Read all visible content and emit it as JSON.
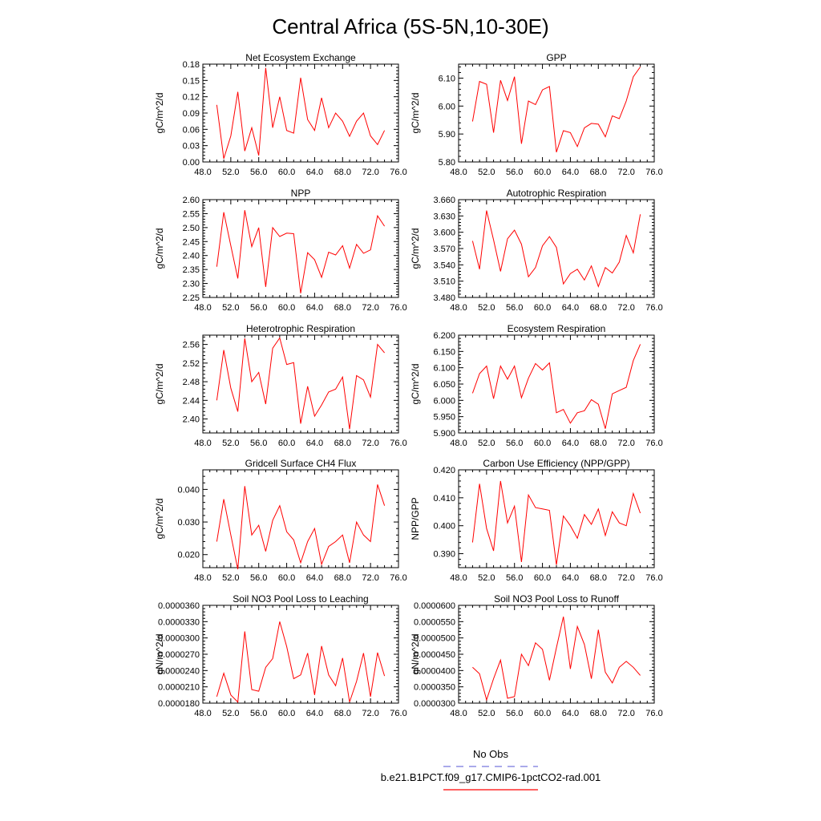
{
  "title": "Central Africa (5S-5N,10-30E)",
  "xaxis": {
    "ticks": [
      "48.0",
      "52.0",
      "56.0",
      "60.0",
      "64.0",
      "68.0",
      "72.0",
      "76.0"
    ],
    "range": [
      48,
      76
    ]
  },
  "legend": {
    "obs_label": "No Obs",
    "obs_color": "#7777dd",
    "model_label": "b.e21.B1PCT.f09_g17.CMIP6-1pctCO2-rad.001",
    "model_color": "#ff0000"
  },
  "chart_data": [
    {
      "type": "line",
      "title": "Net Ecosystem Exchange",
      "ylabel": "gC/m^2/d",
      "ylim": [
        0.0,
        0.18
      ],
      "yticks": [
        "0.00",
        "0.03",
        "0.06",
        "0.09",
        "0.12",
        "0.15",
        "0.18"
      ],
      "x": [
        50,
        51,
        52,
        53,
        54,
        55,
        56,
        57,
        58,
        59,
        60,
        61,
        62,
        63,
        64,
        65,
        66,
        67,
        68,
        69,
        70,
        71,
        72,
        73,
        74
      ],
      "values": [
        0.105,
        0.006,
        0.048,
        0.129,
        0.02,
        0.063,
        0.012,
        0.173,
        0.063,
        0.12,
        0.058,
        0.053,
        0.155,
        0.078,
        0.058,
        0.118,
        0.063,
        0.09,
        0.075,
        0.047,
        0.075,
        0.09,
        0.048,
        0.032,
        0.058
      ]
    },
    {
      "type": "line",
      "title": "GPP",
      "ylabel": "gC/m^2/d",
      "ylim": [
        5.8,
        6.15
      ],
      "yticks": [
        "5.80",
        "5.90",
        "6.00",
        "6.10"
      ],
      "x": [
        50,
        51,
        52,
        53,
        54,
        55,
        56,
        57,
        58,
        59,
        60,
        61,
        62,
        63,
        64,
        65,
        66,
        67,
        68,
        69,
        70,
        71,
        72,
        73,
        74
      ],
      "values": [
        5.945,
        6.088,
        6.078,
        5.905,
        6.092,
        6.02,
        6.105,
        5.865,
        6.018,
        6.005,
        6.058,
        6.07,
        5.835,
        5.912,
        5.905,
        5.855,
        5.922,
        5.938,
        5.935,
        5.89,
        5.965,
        5.955,
        6.018,
        6.105,
        6.14
      ]
    },
    {
      "type": "line",
      "title": "NPP",
      "ylabel": "gC/m^2/d",
      "ylim": [
        2.25,
        2.6
      ],
      "yticks": [
        "2.25",
        "2.30",
        "2.35",
        "2.40",
        "2.45",
        "2.50",
        "2.55",
        "2.60"
      ],
      "x": [
        50,
        51,
        52,
        53,
        54,
        55,
        56,
        57,
        58,
        59,
        60,
        61,
        62,
        63,
        64,
        65,
        66,
        67,
        68,
        69,
        70,
        71,
        72,
        73,
        74
      ],
      "values": [
        2.36,
        2.555,
        2.435,
        2.318,
        2.562,
        2.432,
        2.5,
        2.288,
        2.5,
        2.468,
        2.48,
        2.478,
        2.265,
        2.41,
        2.385,
        2.322,
        2.412,
        2.402,
        2.435,
        2.355,
        2.44,
        2.408,
        2.42,
        2.542,
        2.505
      ]
    },
    {
      "type": "line",
      "title": "Autotrophic Respiration",
      "ylabel": "gC/m^2/d",
      "ylim": [
        3.48,
        3.66
      ],
      "yticks": [
        "3.480",
        "3.510",
        "3.540",
        "3.570",
        "3.600",
        "3.630",
        "3.660"
      ],
      "x": [
        50,
        51,
        52,
        53,
        54,
        55,
        56,
        57,
        58,
        59,
        60,
        61,
        62,
        63,
        64,
        65,
        66,
        67,
        68,
        69,
        70,
        71,
        72,
        73,
        74
      ],
      "values": [
        3.584,
        3.532,
        3.64,
        3.586,
        3.528,
        3.588,
        3.604,
        3.578,
        3.518,
        3.535,
        3.575,
        3.592,
        3.572,
        3.505,
        3.524,
        3.532,
        3.512,
        3.538,
        3.5,
        3.535,
        3.525,
        3.545,
        3.594,
        3.562,
        3.633
      ]
    },
    {
      "type": "line",
      "title": "Heterotrophic Respiration",
      "ylabel": "gC/m^2/d",
      "ylim": [
        2.37,
        2.58
      ],
      "yticks": [
        "2.40",
        "2.44",
        "2.48",
        "2.52",
        "2.56"
      ],
      "x": [
        50,
        51,
        52,
        53,
        54,
        55,
        56,
        57,
        58,
        59,
        60,
        61,
        62,
        63,
        64,
        65,
        66,
        67,
        68,
        69,
        70,
        71,
        72,
        73,
        74
      ],
      "values": [
        2.44,
        2.548,
        2.466,
        2.416,
        2.573,
        2.48,
        2.5,
        2.432,
        2.552,
        2.574,
        2.517,
        2.521,
        2.39,
        2.47,
        2.406,
        2.43,
        2.458,
        2.464,
        2.49,
        2.378,
        2.493,
        2.484,
        2.447,
        2.56,
        2.542
      ]
    },
    {
      "type": "line",
      "title": "Ecosystem Respiration",
      "ylabel": "gC/m^2/d",
      "ylim": [
        5.9,
        6.2
      ],
      "yticks": [
        "5.900",
        "5.950",
        "6.000",
        "6.050",
        "6.100",
        "6.150",
        "6.200"
      ],
      "x": [
        50,
        51,
        52,
        53,
        54,
        55,
        56,
        57,
        58,
        59,
        60,
        61,
        62,
        63,
        64,
        65,
        66,
        67,
        68,
        69,
        70,
        71,
        72,
        73,
        74
      ],
      "values": [
        6.022,
        6.082,
        6.105,
        6.005,
        6.105,
        6.065,
        6.105,
        6.008,
        6.068,
        6.113,
        6.093,
        6.115,
        5.962,
        5.972,
        5.93,
        5.962,
        5.968,
        6.002,
        5.988,
        5.913,
        6.02,
        6.03,
        6.04,
        6.122,
        6.172
      ]
    },
    {
      "type": "line",
      "title": "Gridcell Surface CH4 Flux",
      "ylabel": "gC/m^2/d",
      "ylim": [
        0.016,
        0.046
      ],
      "yticks": [
        "0.020",
        "0.030",
        "0.040"
      ],
      "x": [
        50,
        51,
        52,
        53,
        54,
        55,
        56,
        57,
        58,
        59,
        60,
        61,
        62,
        63,
        64,
        65,
        66,
        67,
        68,
        69,
        70,
        71,
        72,
        73,
        74
      ],
      "values": [
        0.024,
        0.037,
        0.026,
        0.0155,
        0.041,
        0.026,
        0.029,
        0.021,
        0.0305,
        0.035,
        0.027,
        0.0245,
        0.0175,
        0.024,
        0.028,
        0.017,
        0.0225,
        0.024,
        0.026,
        0.0175,
        0.03,
        0.026,
        0.024,
        0.0415,
        0.035
      ]
    },
    {
      "type": "line",
      "title": "Carbon Use Efficiency (NPP/GPP)",
      "ylabel": "NPP/GPP",
      "ylim": [
        0.385,
        0.42
      ],
      "yticks": [
        "0.390",
        "0.400",
        "0.410",
        "0.420"
      ],
      "x": [
        50,
        51,
        52,
        53,
        54,
        55,
        56,
        57,
        58,
        59,
        60,
        61,
        62,
        63,
        64,
        65,
        66,
        67,
        68,
        69,
        70,
        71,
        72,
        73,
        74
      ],
      "values": [
        0.394,
        0.415,
        0.399,
        0.391,
        0.416,
        0.401,
        0.407,
        0.387,
        0.411,
        0.4065,
        0.406,
        0.4055,
        0.386,
        0.4035,
        0.4,
        0.3955,
        0.404,
        0.4005,
        0.406,
        0.3965,
        0.405,
        0.401,
        0.4,
        0.4115,
        0.4045
      ]
    },
    {
      "type": "line",
      "title": "Soil NO3 Pool Loss to Leaching",
      "ylabel": "gN/m^2/d",
      "ylim": [
        1.8e-05,
        3.6e-05
      ],
      "yticks": [
        "0.0000180",
        "0.0000210",
        "0.0000240",
        "0.0000270",
        "0.0000300",
        "0.0000330",
        "0.0000360"
      ],
      "x": [
        50,
        51,
        52,
        53,
        54,
        55,
        56,
        57,
        58,
        59,
        60,
        61,
        62,
        63,
        64,
        65,
        66,
        67,
        68,
        69,
        70,
        71,
        72,
        73,
        74
      ],
      "values": [
        1.92e-05,
        2.35e-05,
        1.95e-05,
        1.82e-05,
        3.12e-05,
        2.05e-05,
        2.02e-05,
        2.46e-05,
        2.62e-05,
        3.3e-05,
        2.84e-05,
        2.25e-05,
        2.32e-05,
        2.72e-05,
        1.95e-05,
        2.85e-05,
        2.32e-05,
        2.12e-05,
        2.63e-05,
        1.82e-05,
        2.2e-05,
        2.72e-05,
        1.92e-05,
        2.73e-05,
        2.3e-05
      ]
    },
    {
      "type": "line",
      "title": "Soil NO3 Pool Loss to Runoff",
      "ylabel": "gN/m^2/d",
      "ylim": [
        3e-05,
        6e-05
      ],
      "yticks": [
        "0.0000300",
        "0.0000350",
        "0.0000400",
        "0.0000450",
        "0.0000500",
        "0.0000550",
        "0.0000600"
      ],
      "x": [
        50,
        51,
        52,
        53,
        54,
        55,
        56,
        57,
        58,
        59,
        60,
        61,
        62,
        63,
        64,
        65,
        66,
        67,
        68,
        69,
        70,
        71,
        72,
        73,
        74
      ],
      "values": [
        4.1e-05,
        3.9e-05,
        3.1e-05,
        3.75e-05,
        4.32e-05,
        3.15e-05,
        3.2e-05,
        4.5e-05,
        4.15e-05,
        4.85e-05,
        4.65e-05,
        3.7e-05,
        4.7e-05,
        5.65e-05,
        4.05e-05,
        5.35e-05,
        4.8e-05,
        3.75e-05,
        5.25e-05,
        3.95e-05,
        3.62e-05,
        4.1e-05,
        4.28e-05,
        4.1e-05,
        3.85e-05
      ]
    }
  ]
}
